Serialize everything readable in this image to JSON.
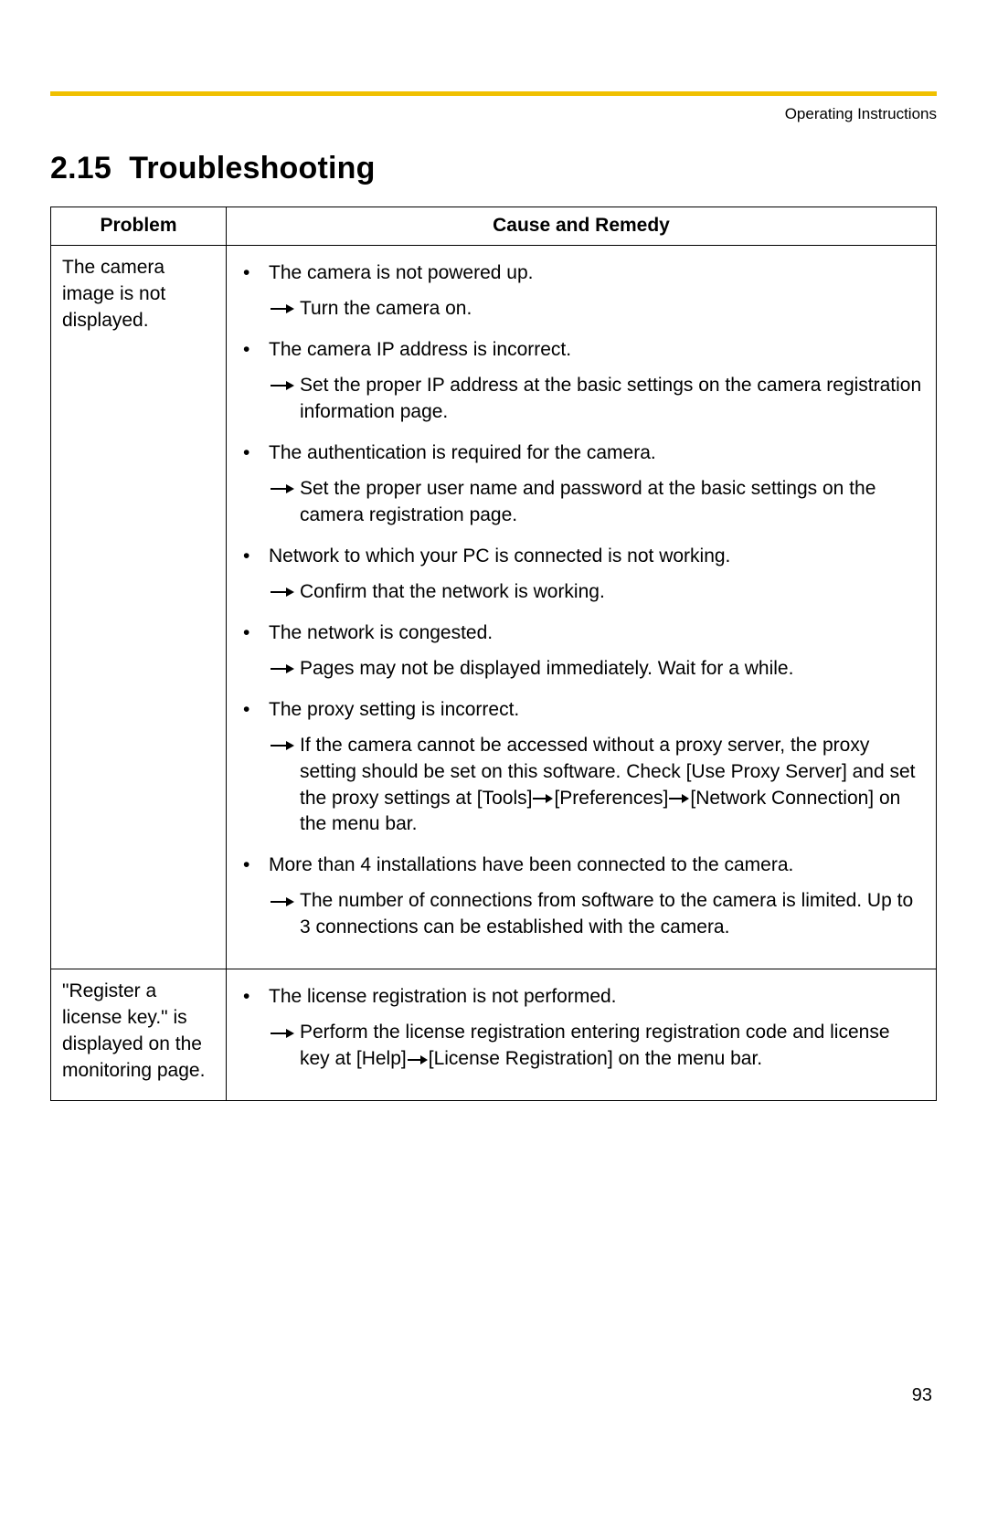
{
  "header_label": "Operating Instructions",
  "section_number": "2.15",
  "section_title": "Troubleshooting",
  "top_rule_color": "#f0c000",
  "page_number": "93",
  "table": {
    "columns": [
      "Problem",
      "Cause and Remedy"
    ],
    "rows": [
      {
        "problem": "The camera image is not displayed.",
        "causes": [
          {
            "cause": "The camera is not powered up.",
            "remedy_segments": [
              "Turn the camera on."
            ]
          },
          {
            "cause": "The camera IP address is incorrect.",
            "remedy_segments": [
              "Set the proper IP address at the basic settings on the camera registration information page."
            ]
          },
          {
            "cause": "The authentication is required for the camera.",
            "remedy_segments": [
              "Set the proper user name and password at the basic settings on the camera registration page."
            ]
          },
          {
            "cause": "Network to which your PC is connected is not working.",
            "remedy_segments": [
              "Confirm that the network is working."
            ]
          },
          {
            "cause": "The network is congested.",
            "remedy_segments": [
              "Pages may not be displayed immediately. Wait for a while."
            ]
          },
          {
            "cause": "The proxy setting is incorrect.",
            "remedy_segments": [
              "If the camera cannot be accessed without a proxy server, the proxy setting should be set on this software. Check [Use Proxy Server] and set the proxy settings at [Tools]",
              "[Preferences]",
              "[Network Connection] on the menu bar."
            ]
          },
          {
            "cause": "More than 4 installations have been connected to the camera.",
            "remedy_segments": [
              "The number of connections from software to the camera is limited. Up to 3 connections can be established with the camera."
            ]
          }
        ]
      },
      {
        "problem": "\"Register a license key.\" is displayed on the monitoring page.",
        "causes": [
          {
            "cause": "The license registration is not performed.",
            "remedy_segments": [
              "Perform the license registration entering registration code and license key at [Help]",
              "[License Registration] on the menu bar."
            ]
          }
        ]
      }
    ]
  }
}
